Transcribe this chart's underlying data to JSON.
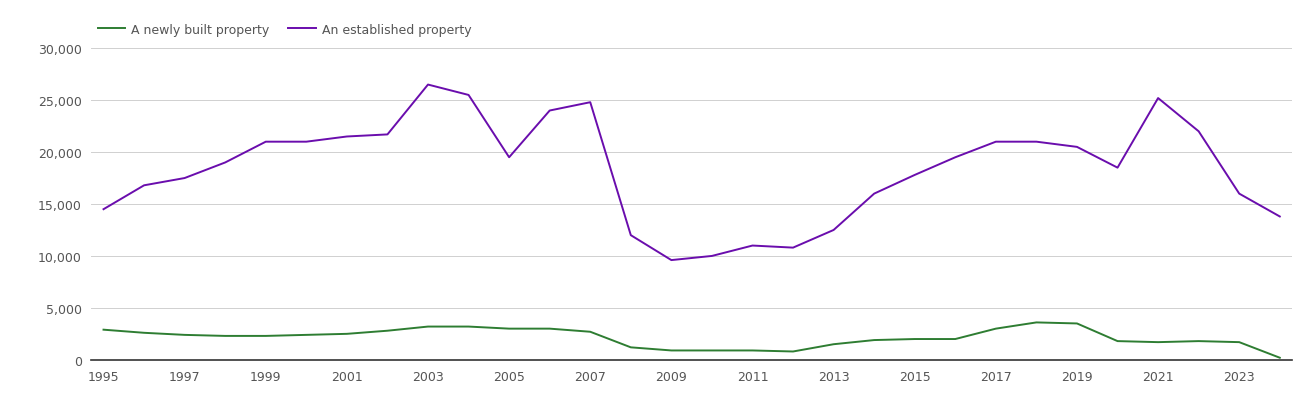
{
  "years": [
    1995,
    1996,
    1997,
    1998,
    1999,
    2000,
    2001,
    2002,
    2003,
    2004,
    2005,
    2006,
    2007,
    2008,
    2009,
    2010,
    2011,
    2012,
    2013,
    2014,
    2015,
    2016,
    2017,
    2018,
    2019,
    2020,
    2021,
    2022,
    2023,
    2024
  ],
  "new_homes": [
    2900,
    2600,
    2400,
    2300,
    2300,
    2400,
    2500,
    2800,
    3200,
    3200,
    3000,
    3000,
    2700,
    1200,
    900,
    900,
    900,
    800,
    1500,
    1900,
    2000,
    2000,
    3000,
    3600,
    3500,
    1800,
    1700,
    1800,
    1700,
    200
  ],
  "old_homes": [
    14500,
    16800,
    17500,
    19000,
    21000,
    21000,
    21500,
    21700,
    26500,
    25500,
    19500,
    24000,
    24800,
    12000,
    9600,
    10000,
    11000,
    10800,
    12500,
    16000,
    17800,
    19500,
    21000,
    21000,
    20500,
    18500,
    25200,
    22000,
    16000,
    13800
  ],
  "new_color": "#2e7d32",
  "old_color": "#6a0dad",
  "legend_new": "A newly built property",
  "legend_old": "An established property",
  "ylim": [
    0,
    30000
  ],
  "yticks": [
    0,
    5000,
    10000,
    15000,
    20000,
    25000,
    30000
  ],
  "background_color": "#ffffff",
  "grid_color": "#d0d0d0",
  "tick_label_color": "#555555",
  "spine_color": "#333333"
}
